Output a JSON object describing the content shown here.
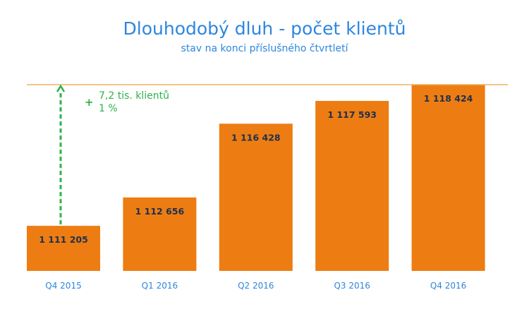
{
  "chart_data": {
    "type": "bar",
    "title": "Dlouhodobý dluh - počet klientů",
    "subtitle": "stav na konci příslušného čtvrtletí",
    "categories": [
      "Q4 2015",
      "Q1 2016",
      "Q2 2016",
      "Q3 2016",
      "Q4 2016"
    ],
    "values": [
      1111205,
      1112656,
      1116428,
      1117593,
      1118424
    ],
    "value_labels": [
      "1 111 205",
      "1 112 656",
      "1 116 428",
      "1 117 593",
      "1 118 424"
    ],
    "ylim": [
      1108900,
      1118424
    ],
    "grid": false,
    "legend": "none",
    "annotation": {
      "sign": "+",
      "line1": "7,2 tis. klientů",
      "line2": "1 %"
    },
    "colors": {
      "bar": "#ed7d12",
      "reference_line": "#f0b060",
      "annotation": "#2eb34a",
      "text_blue": "#2e86de",
      "bar_label": "#1f2f4f"
    }
  }
}
